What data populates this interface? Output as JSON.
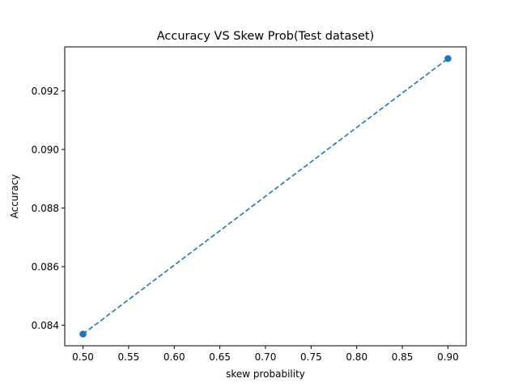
{
  "chart_data": {
    "type": "line",
    "title": "Accuracy VS Skew Prob(Test dataset)",
    "xlabel": "skew probability",
    "ylabel": "Accuracy",
    "x": [
      0.5,
      0.9
    ],
    "series": [
      {
        "values": [
          0.0837,
          0.0931
        ]
      }
    ],
    "xlim": [
      0.48,
      0.92
    ],
    "ylim": [
      0.0833,
      0.0935
    ],
    "xticks": [
      0.5,
      0.55,
      0.6,
      0.65,
      0.7,
      0.75,
      0.8,
      0.85,
      0.9
    ],
    "xtick_labels": [
      "0.50",
      "0.55",
      "0.60",
      "0.65",
      "0.70",
      "0.75",
      "0.80",
      "0.85",
      "0.90"
    ],
    "yticks": [
      0.084,
      0.086,
      0.088,
      0.09,
      0.092
    ],
    "ytick_labels": [
      "0.084",
      "0.086",
      "0.088",
      "0.090",
      "0.092"
    ],
    "line_style": "dashed",
    "marker": "circle",
    "grid": false,
    "color": "#1f77b4"
  }
}
